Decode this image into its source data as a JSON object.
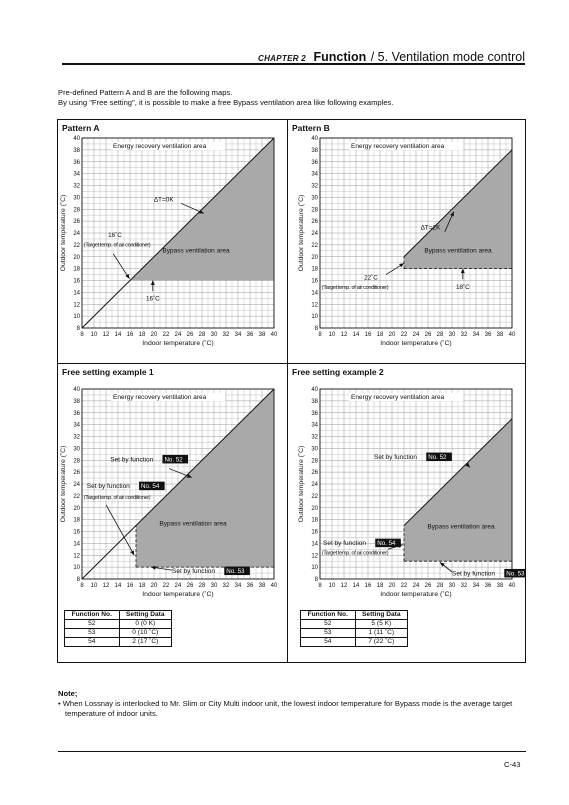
{
  "header": {
    "chapter": "CHAPTER 2",
    "function_word": "Function",
    "section": "/ 5. Ventilation mode control"
  },
  "intro": {
    "line1": "Pre-defined Pattern A and B are the following maps.",
    "line2": "By using \"Free setting\", it is possible to make a free Bypass ventilation area like following examples."
  },
  "axes": {
    "xticks": [
      8,
      10,
      12,
      14,
      16,
      18,
      20,
      22,
      24,
      26,
      28,
      30,
      32,
      34,
      36,
      38,
      40
    ],
    "yticks": [
      8,
      10,
      12,
      14,
      16,
      18,
      20,
      22,
      24,
      26,
      28,
      30,
      32,
      34,
      36,
      38,
      40
    ],
    "xlabel": "Indoor temperature (˚C)",
    "ylabel": "Outdoor temperature (˚C)"
  },
  "panels": [
    {
      "id": "pattern-a",
      "title": "Pattern A",
      "labels": {
        "erv": "Energy recovery ventilation area",
        "bypass": "Bypass ventilation area",
        "dt": "∆T=0K",
        "t1": "16˚C",
        "t2": "(Target temp. of air conditioner)",
        "t3": "16˚C"
      },
      "chart_data": {
        "type": "area",
        "x_range": [
          8,
          40
        ],
        "y_range": [
          8,
          40
        ],
        "bypass_polygon": [
          [
            16,
            16
          ],
          [
            40,
            40
          ],
          [
            40,
            16
          ]
        ],
        "diagonal": [
          [
            8,
            8
          ],
          [
            40,
            40
          ]
        ]
      }
    },
    {
      "id": "pattern-b",
      "title": "Pattern B",
      "labels": {
        "erv": "Energy recovery ventilation area",
        "bypass": "Bypass ventilation area",
        "dt": "∆T=2K",
        "t1": "22˚C",
        "t2": "(Target temp. of air conditioner)",
        "t3": "18˚C"
      },
      "chart_data": {
        "type": "area",
        "x_range": [
          8,
          40
        ],
        "y_range": [
          8,
          40
        ],
        "bypass_polygon": [
          [
            22,
            18
          ],
          [
            22,
            20
          ],
          [
            40,
            38
          ],
          [
            40,
            18
          ]
        ],
        "diagonal": [
          [
            22,
            20
          ],
          [
            40,
            38
          ]
        ]
      }
    },
    {
      "id": "free-1",
      "title": "Free setting example 1",
      "labels": {
        "erv": "Energy recovery ventilation area",
        "bypass": "Bypass ventilation area",
        "f52": "Set by function",
        "f54": "Set by function",
        "f53": "Set by function",
        "n52": "No. 52",
        "n54": "No. 54",
        "n53": "No. 53",
        "t2": "(Target temp. of air conditioner)"
      },
      "chart_data": {
        "type": "area",
        "x_range": [
          8,
          40
        ],
        "y_range": [
          8,
          40
        ],
        "bypass_polygon": [
          [
            17,
            10
          ],
          [
            17,
            17
          ],
          [
            40,
            40
          ],
          [
            40,
            10
          ]
        ],
        "diagonal": [
          [
            8,
            8
          ],
          [
            40,
            40
          ]
        ]
      },
      "table": {
        "headers": [
          "Function No.",
          "Setting Data"
        ],
        "rows": [
          [
            "52",
            "0 (0 K)"
          ],
          [
            "53",
            "0 (10 ˚C)"
          ],
          [
            "54",
            "2 (17 ˚C)"
          ]
        ]
      }
    },
    {
      "id": "free-2",
      "title": "Free setting example 2",
      "labels": {
        "erv": "Energy recovery ventilation area",
        "bypass": "Bypass ventilation area",
        "f52": "Set by function",
        "f54": "Set by function",
        "f53": "Set by function",
        "n52": "No. 52",
        "n54": "No. 54",
        "n53": "No. 53",
        "t2": "(Target temp. of air conditioner)"
      },
      "chart_data": {
        "type": "area",
        "x_range": [
          8,
          40
        ],
        "y_range": [
          8,
          40
        ],
        "bypass_polygon": [
          [
            22,
            11
          ],
          [
            22,
            17
          ],
          [
            40,
            35
          ],
          [
            40,
            11
          ]
        ],
        "diagonal": [
          [
            22,
            17
          ],
          [
            40,
            35
          ]
        ]
      },
      "table": {
        "headers": [
          "Function No.",
          "Setting Data"
        ],
        "rows": [
          [
            "52",
            "5 (5 K)"
          ],
          [
            "53",
            "1 (11 ˚C)"
          ],
          [
            "54",
            "7 (22 ˚C)"
          ]
        ]
      }
    }
  ],
  "note": {
    "title": "Note;",
    "text": "• When Lossnay is interlocked to Mr. Slim or City Multi indoor unit, the lowest indoor temperature for Bypass mode is the average target temperature of indoor units."
  },
  "footer": {
    "page": "C-43"
  }
}
